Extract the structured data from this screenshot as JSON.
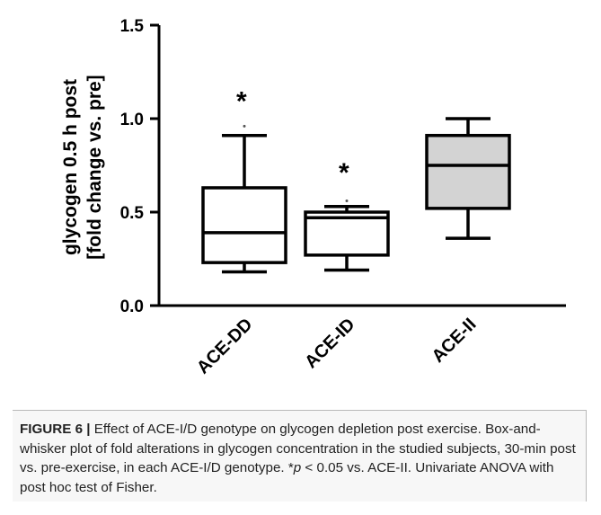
{
  "chart_data": {
    "type": "box",
    "ylabel_lines": [
      "glycogen 0.5 h post",
      "[fold change vs. pre]"
    ],
    "ylim": [
      0,
      1.5
    ],
    "yticks": [
      0.0,
      0.5,
      1.0,
      1.5
    ],
    "ytick_labels": [
      "0.0",
      "0.5",
      "1.0",
      "1.5"
    ],
    "categories": [
      "ACE-DD",
      "ACE-ID",
      "ACE-II"
    ],
    "boxes": [
      {
        "category": "ACE-DD",
        "whisker_low": 0.18,
        "q1": 0.23,
        "median": 0.39,
        "q3": 0.63,
        "whisker_high": 0.91,
        "outliers": [
          0.96
        ],
        "fill": "#ffffff",
        "annotation": "*"
      },
      {
        "category": "ACE-ID",
        "whisker_low": 0.19,
        "q1": 0.27,
        "median": 0.47,
        "q3": 0.5,
        "whisker_high": 0.53,
        "outliers": [
          0.56
        ],
        "fill": "#ffffff",
        "annotation": "*"
      },
      {
        "category": "ACE-II",
        "whisker_low": 0.36,
        "q1": 0.52,
        "median": 0.75,
        "q3": 0.91,
        "whisker_high": 1.0,
        "outliers": [],
        "fill": "#d3d3d3",
        "annotation": ""
      }
    ]
  },
  "caption": {
    "label": "FIGURE 6 |",
    "text_1": " Effect of ACE-I/D genotype on glycogen depletion post exercise. Box-and-whisker plot of fold alterations in glycogen concentration in the studied subjects, 30-min post vs. pre-exercise, in each ACE-I/D genotype. *",
    "p_symbol": "p",
    "text_2": " < 0.05 vs. ACE-II. Univariate ANOVA with post hoc test of Fisher."
  }
}
